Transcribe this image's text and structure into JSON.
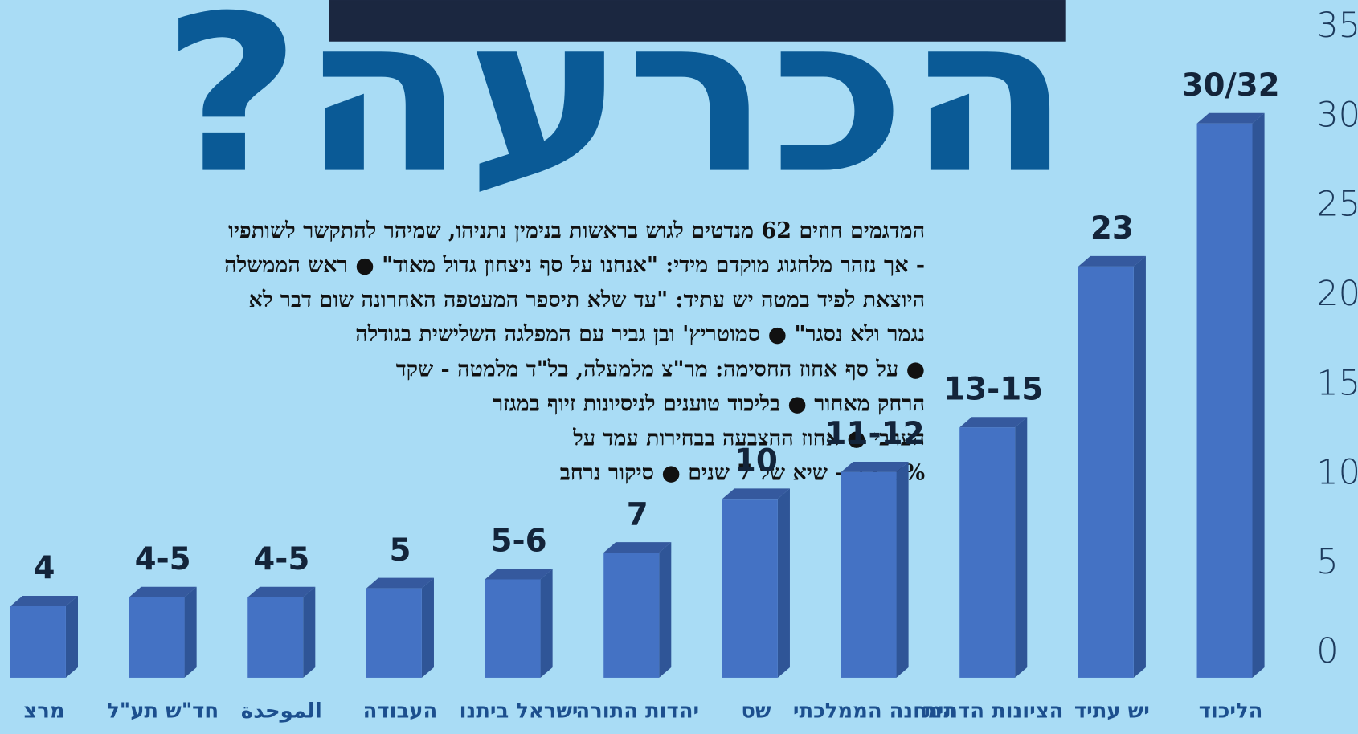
{
  "chart_data": {
    "type": "bar3d",
    "title": "הכרעה?",
    "text_lines": [
      "המדגמים חוזים 62 מנדטים לגוש בראשות בנימין נתניהו, שמיהר להתקשר לשותפיו",
      "- אך נזהר מלחגוג מוקדם מידי: \"אנחנו על סף ניצחון גדול מאוד\" ● ראש הממשלה",
      "היוצאת לפיד במטה יש עתיד: \"עד שלא תיספר המעטפה האחרונה שום דבר לא",
      "נגמר ולא נסגר\" ● סמוטריץ' ובן גביר עם המפלגה השלישית בגודלה",
      "● על סף אחוז החסימה: מר\"צ מלמעלה, בל\"ד מלמטה - שקד",
      "הרחק מאחור ● בליכוד טוענים לניסיונות זיוף במגזר",
      "הערבי ● אחוז ההצבעה בבחירות עמד על",
      "71.3% - שיא של 7 שנים ● סיקור נרחב"
    ],
    "categories": [
      "מרצ",
      "חד\"ש תע\"ל",
      "الموحدة",
      "העבודה",
      "ישראל ביתנו",
      "יהדות התורה",
      "שס",
      "המחנה הממלכתי",
      "הציונות הדתית",
      "יש עתיד",
      "הליכוד"
    ],
    "values": [
      4,
      4.5,
      4.5,
      5,
      5.5,
      7,
      10,
      11.5,
      14,
      23,
      31
    ],
    "value_labels": [
      "4",
      "4-5",
      "4-5",
      "5",
      "5-6",
      "7",
      "10",
      "11-12",
      "13-15",
      "23",
      "30/32"
    ],
    "color": "#4472c4",
    "ylim": [
      0,
      35
    ],
    "yticks": [
      0,
      5,
      10,
      15,
      20,
      25,
      30,
      35
    ],
    "grid": false
  }
}
